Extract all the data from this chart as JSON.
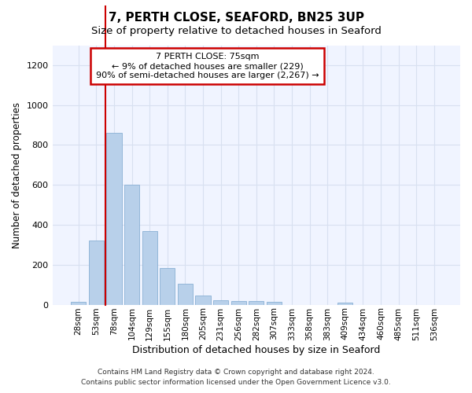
{
  "title": "7, PERTH CLOSE, SEAFORD, BN25 3UP",
  "subtitle": "Size of property relative to detached houses in Seaford",
  "xlabel": "Distribution of detached houses by size in Seaford",
  "ylabel": "Number of detached properties",
  "categories": [
    "28sqm",
    "53sqm",
    "78sqm",
    "104sqm",
    "129sqm",
    "155sqm",
    "180sqm",
    "205sqm",
    "231sqm",
    "256sqm",
    "282sqm",
    "307sqm",
    "333sqm",
    "358sqm",
    "383sqm",
    "409sqm",
    "434sqm",
    "460sqm",
    "485sqm",
    "511sqm",
    "536sqm"
  ],
  "values": [
    15,
    320,
    860,
    600,
    370,
    185,
    105,
    47,
    22,
    18,
    20,
    15,
    0,
    0,
    0,
    12,
    0,
    0,
    0,
    0,
    0
  ],
  "bar_color": "#b8d0ea",
  "bar_edge_color": "#8ab0d4",
  "vline_color": "#cc0000",
  "vline_x": 1.5,
  "ylim": [
    0,
    1300
  ],
  "yticks": [
    0,
    200,
    400,
    600,
    800,
    1000,
    1200
  ],
  "annotation_line1": "7 PERTH CLOSE: 75sqm",
  "annotation_line2": "← 9% of detached houses are smaller (229)",
  "annotation_line3": "90% of semi-detached houses are larger (2,267) →",
  "annotation_box_edgecolor": "#cc0000",
  "footer1": "Contains HM Land Registry data © Crown copyright and database right 2024.",
  "footer2": "Contains public sector information licensed under the Open Government Licence v3.0.",
  "bg_color": "#ffffff",
  "plot_bg_color": "#f0f4ff",
  "grid_color": "#d8e0f0"
}
